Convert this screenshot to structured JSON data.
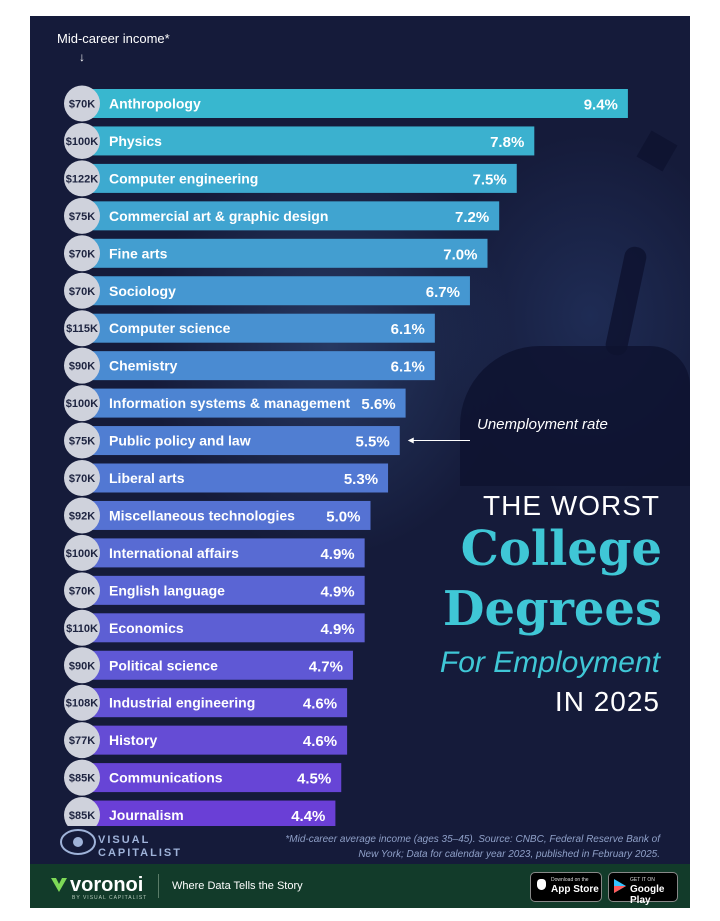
{
  "header": {
    "income_label": "Mid-career income*",
    "arrow": "↓"
  },
  "title": {
    "line1": "THE WORST",
    "line2": "College",
    "line3": "Degrees",
    "line4": "For Employment",
    "line5": "IN 2025"
  },
  "annotation": {
    "unemployment_label": "Unemployment rate"
  },
  "source": {
    "line1": "*Mid-career average income (ages 35–45). Source: CNBC, Federal Reserve Bank of",
    "line2": "New York; Data for calendar year 2023, published in February 2025."
  },
  "logo": {
    "line1": "VISUAL",
    "line2": "CAPITALIST"
  },
  "footer": {
    "brand": "voronoi",
    "brand_sub": "BY VISUAL CAPITALIST",
    "tagline": "Where Data Tells the Story",
    "app_store_small": "Download on the",
    "app_store_big": "App Store",
    "google_small": "GET IT ON",
    "google_big": "Google Play"
  },
  "colors": {
    "background": "#151b3a",
    "bar_top": "#38b7cf",
    "bar_bottom": "#6a3fd6",
    "title_accent": "#3fc7d6",
    "income_circle": "#cfd2dc",
    "footer": "#123b2a"
  },
  "chart_data": {
    "type": "bar",
    "orientation": "horizontal",
    "categories": [
      "Anthropology",
      "Physics",
      "Computer engineering",
      "Commercial art & graphic design",
      "Fine arts",
      "Sociology",
      "Computer science",
      "Chemistry",
      "Information systems & management",
      "Public policy and law",
      "Liberal arts",
      "Miscellaneous technologies",
      "International affairs",
      "English language",
      "Economics",
      "Political science",
      "Industrial engineering",
      "History",
      "Communications",
      "Journalism"
    ],
    "values": [
      9.4,
      7.8,
      7.5,
      7.2,
      7.0,
      6.7,
      6.1,
      6.1,
      5.6,
      5.5,
      5.3,
      5.0,
      4.9,
      4.9,
      4.9,
      4.7,
      4.6,
      4.6,
      4.5,
      4.4
    ],
    "value_labels": [
      "9.4%",
      "7.8%",
      "7.5%",
      "7.2%",
      "7.0%",
      "6.7%",
      "6.1%",
      "6.1%",
      "5.6%",
      "5.5%",
      "5.3%",
      "5.0%",
      "4.9%",
      "4.9%",
      "4.9%",
      "4.7%",
      "4.6%",
      "4.6%",
      "4.5%",
      "4.4%"
    ],
    "income_labels": [
      "$70K",
      "$100K",
      "$122K",
      "$75K",
      "$70K",
      "$70K",
      "$115K",
      "$90K",
      "$100K",
      "$75K",
      "$70K",
      "$92K",
      "$100K",
      "$70K",
      "$110K",
      "$90K",
      "$108K",
      "$77K",
      "$85K",
      "$85K"
    ],
    "series": [
      {
        "name": "Unemployment rate",
        "values": [
          9.4,
          7.8,
          7.5,
          7.2,
          7.0,
          6.7,
          6.1,
          6.1,
          5.6,
          5.5,
          5.3,
          5.0,
          4.9,
          4.9,
          4.9,
          4.7,
          4.6,
          4.6,
          4.5,
          4.4
        ]
      }
    ],
    "grid": false,
    "legend": "none"
  }
}
